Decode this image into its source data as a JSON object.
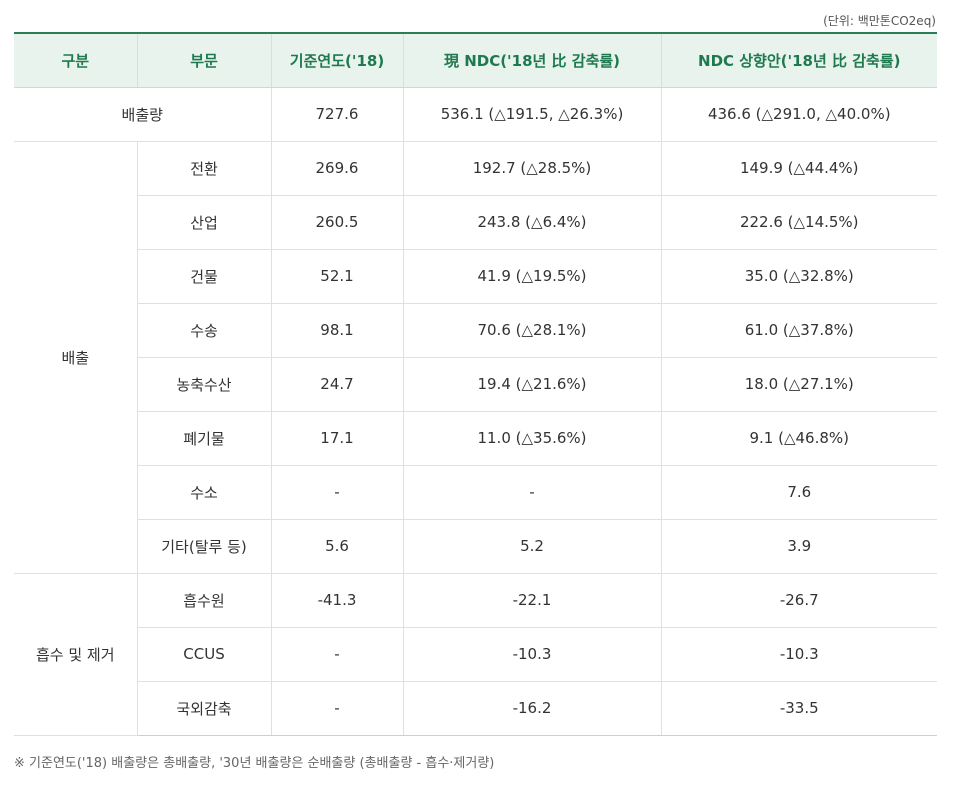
{
  "unit_label": "(단위: 백만톤CO2eq)",
  "headers": [
    "구분",
    "부문",
    "기준연도('18)",
    "現 NDC('18년 比 감축률)",
    "NDC 상향안('18년 比 감축률)"
  ],
  "emission_total": {
    "label": "배출량",
    "base": "727.6",
    "current": "536.1 (△191.5, △26.3%)",
    "proposal": "436.6 (△291.0, △40.0%)"
  },
  "emissions": {
    "group_label": "배출",
    "rows": [
      {
        "sector": "전환",
        "base": "269.6",
        "current": "192.7 (△28.5%)",
        "proposal": "149.9 (△44.4%)"
      },
      {
        "sector": "산업",
        "base": "260.5",
        "current": "243.8 (△6.4%)",
        "proposal": "222.6 (△14.5%)"
      },
      {
        "sector": "건물",
        "base": "52.1",
        "current": "41.9 (△19.5%)",
        "proposal": "35.0 (△32.8%)"
      },
      {
        "sector": "수송",
        "base": "98.1",
        "current": "70.6 (△28.1%)",
        "proposal": "61.0 (△37.8%)"
      },
      {
        "sector": "농축수산",
        "base": "24.7",
        "current": "19.4 (△21.6%)",
        "proposal": "18.0 (△27.1%)"
      },
      {
        "sector": "폐기물",
        "base": "17.1",
        "current": "11.0 (△35.6%)",
        "proposal": "9.1 (△46.8%)"
      },
      {
        "sector": "수소",
        "base": "-",
        "current": "-",
        "proposal": "7.6"
      },
      {
        "sector": "기타(탈루 등)",
        "base": "5.6",
        "current": "5.2",
        "proposal": "3.9"
      }
    ]
  },
  "absorption": {
    "group_label": "흡수 및 제거",
    "rows": [
      {
        "sector": "흡수원",
        "base": "-41.3",
        "current": "-22.1",
        "proposal": "-26.7"
      },
      {
        "sector": "CCUS",
        "base": "-",
        "current": "-10.3",
        "proposal": "-10.3"
      },
      {
        "sector": "국외감축",
        "base": "-",
        "current": "-16.2",
        "proposal": "-33.5"
      }
    ]
  },
  "footnote": "※ 기준연도('18) 배출량은 총배출량, '30년 배출량은 순배출량 (총배출량 - 흡수·제거량)"
}
